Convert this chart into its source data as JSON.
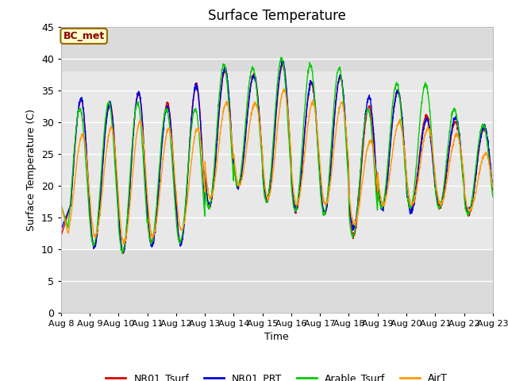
{
  "title": "Surface Temperature",
  "ylabel": "Surface Temperature (C)",
  "xlabel": "Time",
  "ylim": [
    0,
    45
  ],
  "yticks": [
    0,
    5,
    10,
    15,
    20,
    25,
    30,
    35,
    40,
    45
  ],
  "annotation": "BC_met",
  "legend_labels": [
    "NR01_Tsurf",
    "NR01_PRT",
    "Arable_Tsurf",
    "AirT"
  ],
  "legend_colors": [
    "#dd0000",
    "#0000dd",
    "#00cc00",
    "#ff9900"
  ],
  "line_width": 1.0,
  "x_dates": [
    "Aug 8",
    "Aug 9",
    "Aug 10",
    "Aug 11",
    "Aug 12",
    "Aug 13",
    "Aug 14",
    "Aug 15",
    "Aug 16",
    "Aug 17",
    "Aug 18",
    "Aug 19",
    "Aug 20",
    "Aug 21",
    "Aug 22",
    "Aug 23"
  ],
  "num_days": 15,
  "points_per_day": 144,
  "day_mins": [
    11,
    10.5,
    9.5,
    11,
    11,
    16.5,
    20,
    17.5,
    16,
    15.5,
    12,
    16.5,
    16.5,
    16.5,
    15.5
  ],
  "day_maxs": [
    33.5,
    33,
    34.5,
    33,
    36,
    38,
    37.5,
    39,
    36,
    37,
    32.5,
    35,
    31,
    30,
    29
  ],
  "arable_maxs": [
    32,
    33,
    33,
    32,
    32,
    39,
    38.5,
    40,
    39,
    38.5,
    32,
    36,
    36,
    32,
    29.5
  ],
  "air_mins": [
    12,
    12,
    11,
    12,
    13,
    18,
    20,
    18,
    17,
    17,
    14,
    17,
    17,
    17,
    16
  ],
  "air_maxs": [
    28,
    29,
    30,
    29,
    29,
    33,
    33,
    35,
    33,
    33,
    27,
    30,
    29,
    28,
    25
  ],
  "peak_phase": 0.45,
  "trough_phase": 0.15
}
